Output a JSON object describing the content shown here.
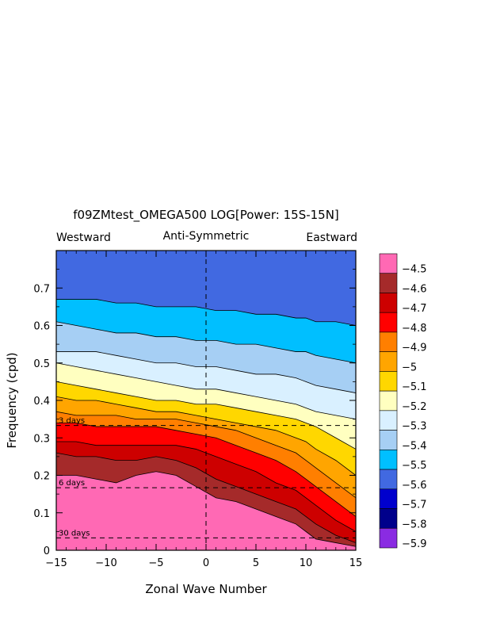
{
  "chart_data": {
    "type": "heatmap",
    "title": "f09ZMtest_OMEGA500 LOG[Power: 15S-15N]",
    "subtitle": "Anti-Symmetric",
    "left_annotation": "Westward",
    "right_annotation": "Eastward",
    "xlabel": "Zonal Wave Number",
    "ylabel": "Frequency (cpd)",
    "xlim": [
      -15,
      15
    ],
    "ylim": [
      0,
      0.8
    ],
    "x_ticks": [
      -15,
      -10,
      -5,
      0,
      5,
      10,
      15
    ],
    "y_ticks": [
      0,
      0.1,
      0.2,
      0.3,
      0.4,
      0.5,
      0.6,
      0.7
    ],
    "period_lines": [
      {
        "label": "3 days",
        "frequency": 0.333
      },
      {
        "label": "6 days",
        "frequency": 0.167
      },
      {
        "label": "30 days",
        "frequency": 0.033
      }
    ],
    "colorbar": {
      "levels": [
        "-4.5",
        "-4.6",
        "-4.7",
        "-4.8",
        "-4.9",
        "-5",
        "-5.1",
        "-5.2",
        "-5.3",
        "-5.4",
        "-5.5",
        "-5.6",
        "-5.7",
        "-5.8",
        "-5.9"
      ],
      "colors": [
        "#ff69b4",
        "#a52a2a",
        "#cd0000",
        "#ff0000",
        "#ff7f00",
        "#ffa500",
        "#ffd700",
        "#ffffc0",
        "#d9f0ff",
        "#a6cff4",
        "#00bfff",
        "#4169e1",
        "#0000cd",
        "#00008b",
        "#8a2be2"
      ]
    },
    "bands": [
      {
        "level": "-4.5",
        "upper": [
          [
            -15,
            0.2
          ],
          [
            -13,
            0.2
          ],
          [
            -11,
            0.19
          ],
          [
            -9,
            0.18
          ],
          [
            -7,
            0.2
          ],
          [
            -5,
            0.21
          ],
          [
            -3,
            0.2
          ],
          [
            -1,
            0.17
          ],
          [
            1,
            0.14
          ],
          [
            3,
            0.13
          ],
          [
            5,
            0.11
          ],
          [
            7,
            0.09
          ],
          [
            9,
            0.07
          ],
          [
            10,
            0.05
          ],
          [
            11,
            0.03
          ],
          [
            13,
            0.02
          ],
          [
            15,
            0.01
          ]
        ]
      },
      {
        "level": "-4.6",
        "upper": [
          [
            -15,
            0.26
          ],
          [
            -13,
            0.25
          ],
          [
            -11,
            0.25
          ],
          [
            -9,
            0.24
          ],
          [
            -7,
            0.24
          ],
          [
            -5,
            0.25
          ],
          [
            -3,
            0.24
          ],
          [
            -1,
            0.22
          ],
          [
            1,
            0.19
          ],
          [
            3,
            0.17
          ],
          [
            5,
            0.15
          ],
          [
            7,
            0.13
          ],
          [
            9,
            0.11
          ],
          [
            10,
            0.09
          ],
          [
            11,
            0.07
          ],
          [
            13,
            0.04
          ],
          [
            15,
            0.02
          ]
        ]
      },
      {
        "level": "-4.7",
        "upper": [
          [
            -15,
            0.29
          ],
          [
            -13,
            0.29
          ],
          [
            -11,
            0.28
          ],
          [
            -9,
            0.28
          ],
          [
            -7,
            0.28
          ],
          [
            -5,
            0.28
          ],
          [
            -3,
            0.28
          ],
          [
            -1,
            0.27
          ],
          [
            1,
            0.25
          ],
          [
            3,
            0.23
          ],
          [
            5,
            0.21
          ],
          [
            7,
            0.18
          ],
          [
            9,
            0.16
          ],
          [
            10,
            0.14
          ],
          [
            11,
            0.12
          ],
          [
            13,
            0.08
          ],
          [
            15,
            0.05
          ]
        ]
      },
      {
        "level": "-4.8",
        "upper": [
          [
            -15,
            0.34
          ],
          [
            -13,
            0.34
          ],
          [
            -11,
            0.33
          ],
          [
            -9,
            0.33
          ],
          [
            -7,
            0.33
          ],
          [
            -5,
            0.33
          ],
          [
            -3,
            0.32
          ],
          [
            -1,
            0.31
          ],
          [
            1,
            0.3
          ],
          [
            3,
            0.28
          ],
          [
            5,
            0.26
          ],
          [
            7,
            0.24
          ],
          [
            9,
            0.21
          ],
          [
            10,
            0.19
          ],
          [
            11,
            0.17
          ],
          [
            13,
            0.13
          ],
          [
            15,
            0.09
          ]
        ]
      },
      {
        "level": "-4.9",
        "upper": [
          [
            -15,
            0.37
          ],
          [
            -13,
            0.36
          ],
          [
            -11,
            0.36
          ],
          [
            -9,
            0.36
          ],
          [
            -7,
            0.35
          ],
          [
            -5,
            0.35
          ],
          [
            -3,
            0.35
          ],
          [
            -1,
            0.34
          ],
          [
            1,
            0.33
          ],
          [
            3,
            0.32
          ],
          [
            5,
            0.3
          ],
          [
            7,
            0.28
          ],
          [
            9,
            0.26
          ],
          [
            10,
            0.24
          ],
          [
            11,
            0.22
          ],
          [
            13,
            0.18
          ],
          [
            15,
            0.14
          ]
        ]
      },
      {
        "level": "-5",
        "upper": [
          [
            -15,
            0.41
          ],
          [
            -13,
            0.4
          ],
          [
            -11,
            0.4
          ],
          [
            -9,
            0.39
          ],
          [
            -7,
            0.38
          ],
          [
            -5,
            0.37
          ],
          [
            -3,
            0.37
          ],
          [
            -1,
            0.36
          ],
          [
            1,
            0.35
          ],
          [
            3,
            0.34
          ],
          [
            5,
            0.33
          ],
          [
            7,
            0.32
          ],
          [
            9,
            0.3
          ],
          [
            10,
            0.29
          ],
          [
            11,
            0.27
          ],
          [
            13,
            0.24
          ],
          [
            15,
            0.2
          ]
        ]
      },
      {
        "level": "-5.1",
        "upper": [
          [
            -15,
            0.45
          ],
          [
            -13,
            0.44
          ],
          [
            -11,
            0.43
          ],
          [
            -9,
            0.42
          ],
          [
            -7,
            0.41
          ],
          [
            -5,
            0.4
          ],
          [
            -3,
            0.4
          ],
          [
            -1,
            0.39
          ],
          [
            1,
            0.39
          ],
          [
            3,
            0.38
          ],
          [
            5,
            0.37
          ],
          [
            7,
            0.36
          ],
          [
            9,
            0.35
          ],
          [
            10,
            0.34
          ],
          [
            11,
            0.33
          ],
          [
            13,
            0.3
          ],
          [
            15,
            0.27
          ]
        ]
      },
      {
        "level": "-5.2",
        "upper": [
          [
            -15,
            0.5
          ],
          [
            -13,
            0.49
          ],
          [
            -11,
            0.48
          ],
          [
            -9,
            0.47
          ],
          [
            -7,
            0.46
          ],
          [
            -5,
            0.45
          ],
          [
            -3,
            0.44
          ],
          [
            -1,
            0.43
          ],
          [
            1,
            0.43
          ],
          [
            3,
            0.42
          ],
          [
            5,
            0.41
          ],
          [
            7,
            0.4
          ],
          [
            9,
            0.39
          ],
          [
            10,
            0.38
          ],
          [
            11,
            0.37
          ],
          [
            13,
            0.36
          ],
          [
            15,
            0.35
          ]
        ]
      },
      {
        "level": "-5.3",
        "upper": [
          [
            -15,
            0.53
          ],
          [
            -13,
            0.53
          ],
          [
            -11,
            0.53
          ],
          [
            -9,
            0.52
          ],
          [
            -7,
            0.51
          ],
          [
            -5,
            0.5
          ],
          [
            -3,
            0.5
          ],
          [
            -1,
            0.49
          ],
          [
            1,
            0.49
          ],
          [
            3,
            0.48
          ],
          [
            5,
            0.47
          ],
          [
            7,
            0.47
          ],
          [
            9,
            0.46
          ],
          [
            10,
            0.45
          ],
          [
            11,
            0.44
          ],
          [
            13,
            0.43
          ],
          [
            15,
            0.42
          ]
        ]
      },
      {
        "level": "-5.4",
        "upper": [
          [
            -15,
            0.61
          ],
          [
            -13,
            0.6
          ],
          [
            -11,
            0.59
          ],
          [
            -9,
            0.58
          ],
          [
            -7,
            0.58
          ],
          [
            -5,
            0.57
          ],
          [
            -3,
            0.57
          ],
          [
            -1,
            0.56
          ],
          [
            1,
            0.56
          ],
          [
            3,
            0.55
          ],
          [
            5,
            0.55
          ],
          [
            7,
            0.54
          ],
          [
            9,
            0.53
          ],
          [
            10,
            0.53
          ],
          [
            11,
            0.52
          ],
          [
            13,
            0.51
          ],
          [
            15,
            0.5
          ]
        ]
      },
      {
        "level": "-5.5",
        "upper": [
          [
            -15,
            0.67
          ],
          [
            -13,
            0.67
          ],
          [
            -11,
            0.67
          ],
          [
            -9,
            0.66
          ],
          [
            -7,
            0.66
          ],
          [
            -5,
            0.65
          ],
          [
            -3,
            0.65
          ],
          [
            -1,
            0.65
          ],
          [
            1,
            0.64
          ],
          [
            3,
            0.64
          ],
          [
            5,
            0.63
          ],
          [
            7,
            0.63
          ],
          [
            9,
            0.62
          ],
          [
            10,
            0.62
          ],
          [
            11,
            0.61
          ],
          [
            13,
            0.61
          ],
          [
            15,
            0.6
          ]
        ]
      },
      {
        "level": "-5.6",
        "upper": [
          [
            -15,
            0.8
          ],
          [
            15,
            0.8
          ]
        ]
      },
      {
        "level": "-5.7",
        "upper": [
          [
            -12,
            0.8
          ],
          [
            -11,
            0.79
          ],
          [
            -10,
            0.78
          ],
          [
            -9,
            0.79
          ],
          [
            -8,
            0.8
          ]
        ]
      }
    ]
  }
}
